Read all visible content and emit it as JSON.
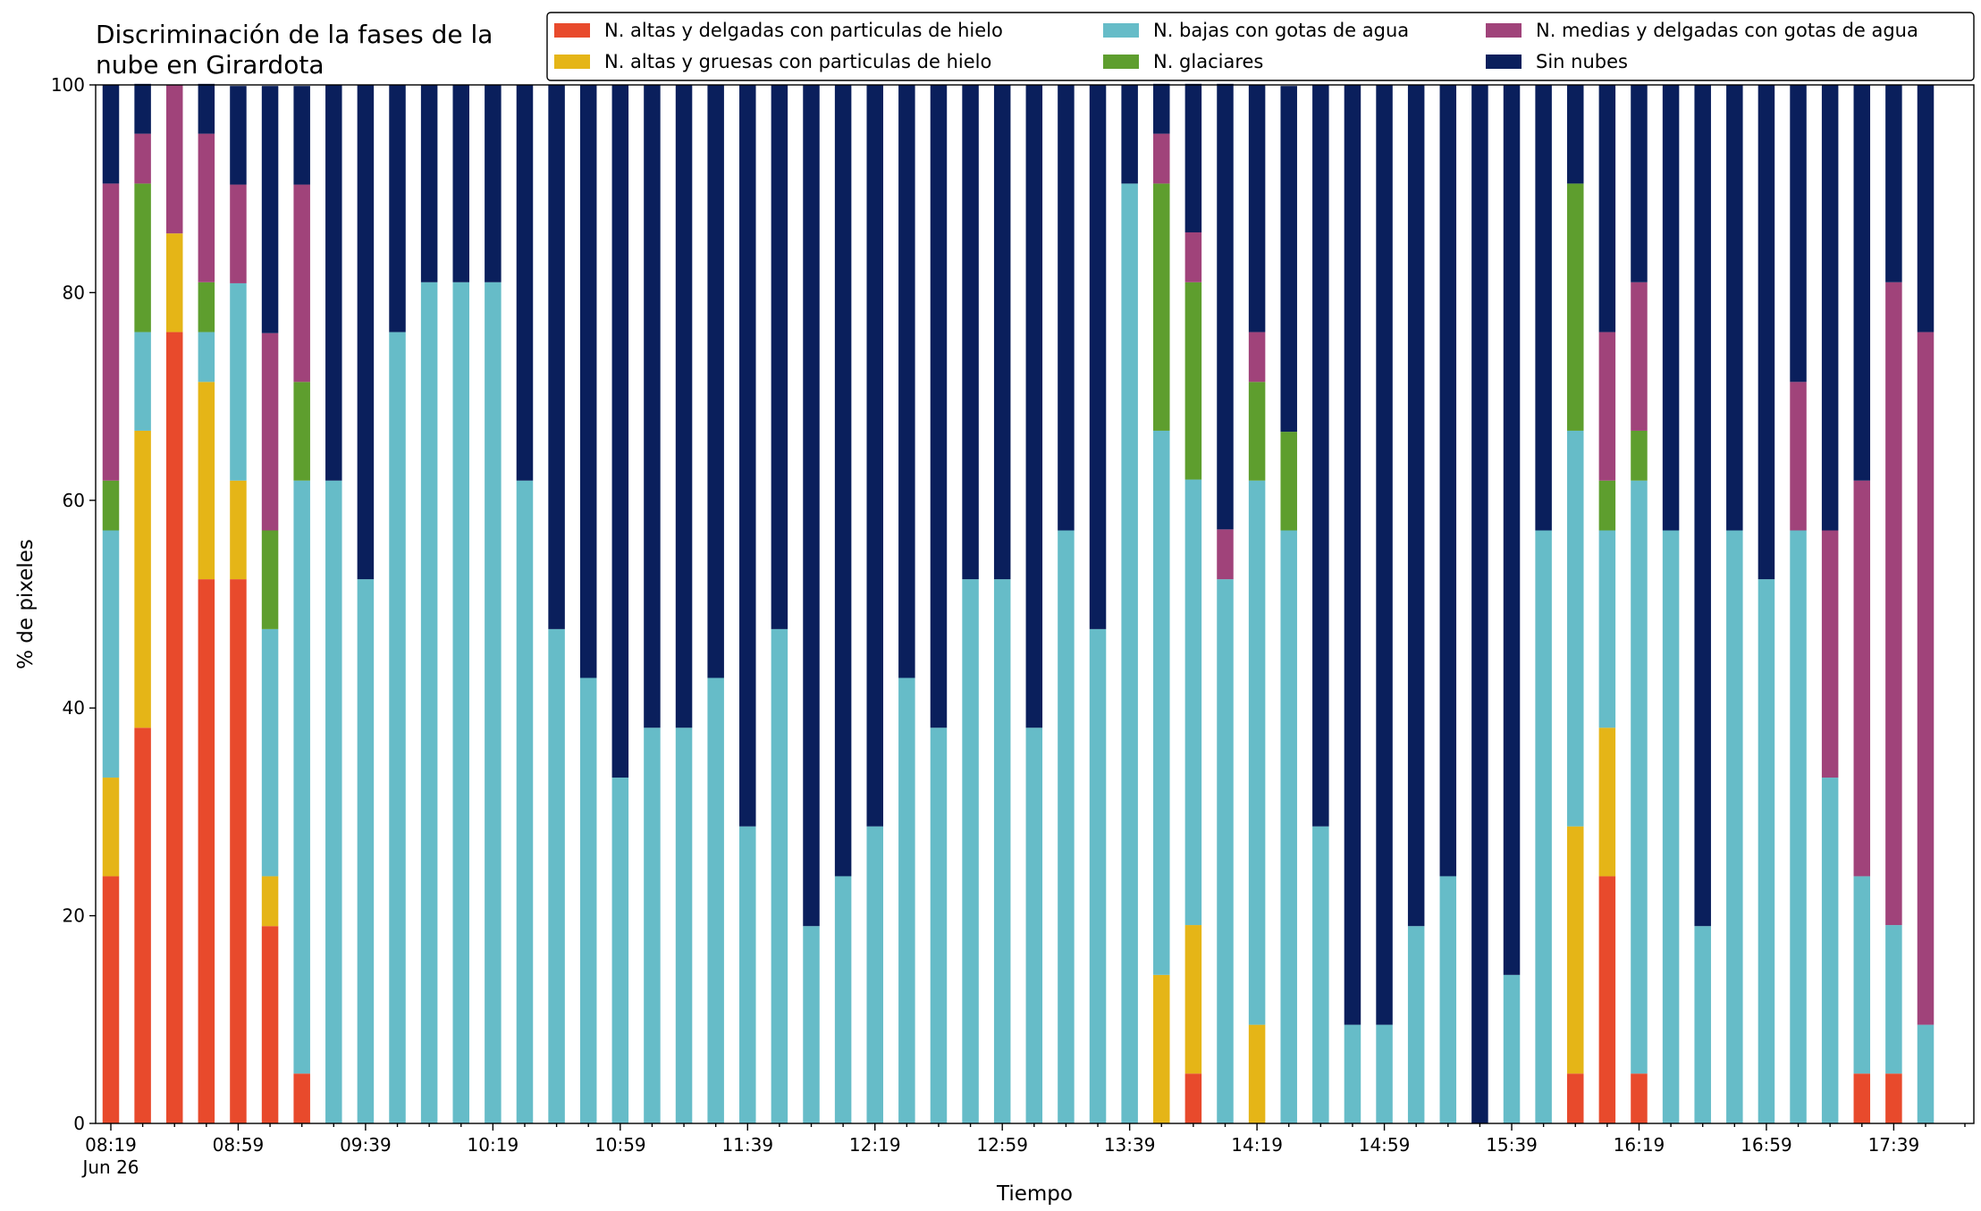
{
  "chart_data": {
    "type": "stacked_bar",
    "title": "Discriminación de la fases de la nube en Girardota",
    "x_label": "Tiempo",
    "y_label": "% de pixeles",
    "x_date_label": "Jun 26",
    "ylim": [
      0,
      100
    ],
    "yticks": [
      0,
      20,
      40,
      60,
      80,
      100
    ],
    "legend": "top-right",
    "categories": [
      "08:19",
      null,
      null,
      null,
      "08:59",
      null,
      null,
      null,
      "09:39",
      null,
      null,
      null,
      "10:19",
      null,
      null,
      null,
      "10:59",
      null,
      null,
      null,
      "11:39",
      null,
      null,
      null,
      "12:19",
      null,
      null,
      null,
      "12:59",
      null,
      null,
      null,
      "13:39",
      null,
      null,
      null,
      "14:19",
      null,
      null,
      null,
      "14:59",
      null,
      null,
      null,
      "15:39",
      null,
      null,
      null,
      "16:19",
      null,
      null,
      null,
      "16:59",
      null,
      null,
      null,
      "17:39",
      null
    ],
    "series": [
      {
        "name": "N. altas y delgadas con particulas de hielo",
        "color": "#e84a2c",
        "values": [
          23.8,
          38.1,
          76.2,
          52.4,
          52.4,
          19.0,
          4.8,
          0,
          0,
          0,
          0,
          0,
          0,
          0,
          0,
          0,
          0,
          0,
          0,
          0,
          0,
          0,
          0,
          0,
          0,
          0,
          0,
          0,
          0,
          0,
          0,
          0,
          0,
          0,
          4.8,
          0,
          0,
          0,
          0,
          0,
          0,
          0,
          0,
          0,
          0,
          0,
          4.8,
          23.8,
          4.8,
          0,
          0,
          0,
          0,
          0,
          0,
          4.8,
          4.8,
          0
        ]
      },
      {
        "name": "N. altas y gruesas con particulas de hielo",
        "color": "#e5b517",
        "values": [
          9.5,
          28.6,
          9.5,
          19.0,
          9.5,
          4.8,
          0,
          0,
          0,
          0,
          0,
          0,
          0,
          0,
          0,
          0,
          0,
          0,
          0,
          0,
          0,
          0,
          0,
          0,
          0,
          0,
          0,
          0,
          0,
          0,
          0,
          0,
          0,
          14.3,
          14.3,
          0,
          9.5,
          0,
          0,
          0,
          0,
          0,
          0,
          0,
          0,
          0,
          23.8,
          14.3,
          0,
          0,
          0,
          0,
          0,
          0,
          0,
          0,
          0,
          0
        ]
      },
      {
        "name": "N. bajas con gotas de agua",
        "color": "#66bcc8",
        "values": [
          23.8,
          9.5,
          0,
          4.8,
          19.0,
          23.8,
          57.1,
          61.9,
          52.4,
          76.2,
          81.0,
          81.0,
          81.0,
          61.9,
          47.6,
          42.9,
          33.3,
          38.1,
          38.1,
          42.9,
          28.6,
          47.6,
          19.0,
          23.8,
          28.6,
          42.9,
          38.1,
          52.4,
          52.4,
          38.1,
          57.1,
          47.6,
          90.5,
          52.4,
          42.9,
          52.4,
          52.4,
          57.1,
          28.6,
          9.5,
          9.5,
          19.0,
          23.8,
          0,
          14.3,
          57.1,
          38.1,
          19.0,
          57.1,
          57.1,
          19.0,
          57.1,
          52.4,
          57.1,
          33.3,
          19.0,
          14.3,
          9.5
        ]
      },
      {
        "name": "N. glaciares",
        "color": "#5e9e2e",
        "values": [
          4.8,
          14.3,
          0,
          4.8,
          0,
          9.5,
          9.5,
          0,
          0,
          0,
          0,
          0,
          0,
          0,
          0,
          0,
          0,
          0,
          0,
          0,
          0,
          0,
          0,
          0,
          0,
          0,
          0,
          0,
          0,
          0,
          0,
          0,
          0,
          23.8,
          19.0,
          0,
          9.5,
          9.5,
          0,
          0,
          0,
          0,
          0,
          0,
          0,
          0,
          23.8,
          4.8,
          4.8,
          0,
          0,
          0,
          0,
          0,
          0,
          0,
          0,
          0
        ]
      },
      {
        "name": "N. medias y delgadas con gotas de agua",
        "color": "#a0437a",
        "values": [
          28.6,
          4.8,
          14.3,
          14.3,
          9.5,
          19.0,
          19.0,
          0,
          0,
          0,
          0,
          0,
          0,
          0,
          0,
          0,
          0,
          0,
          0,
          0,
          0,
          0,
          0,
          0,
          0,
          0,
          0,
          0,
          0,
          0,
          0,
          0,
          0,
          4.8,
          4.8,
          4.8,
          4.8,
          0,
          0,
          0,
          0,
          0,
          0,
          0,
          0,
          0,
          0,
          14.3,
          14.3,
          0,
          0,
          0,
          0,
          14.3,
          23.8,
          38.1,
          61.9,
          66.7
        ]
      },
      {
        "name": "Sin nubes",
        "color": "#0a1f5c",
        "values": [
          9.5,
          4.8,
          0,
          4.8,
          9.5,
          23.8,
          9.5,
          38.1,
          47.6,
          23.8,
          19.0,
          19.0,
          19.0,
          38.1,
          52.4,
          57.1,
          66.7,
          61.9,
          61.9,
          57.1,
          71.4,
          52.4,
          81.0,
          76.2,
          71.4,
          57.1,
          61.9,
          47.6,
          47.6,
          61.9,
          42.9,
          52.4,
          9.5,
          4.8,
          14.3,
          42.9,
          23.8,
          33.3,
          71.4,
          90.5,
          90.5,
          81.0,
          76.2,
          100,
          85.7,
          42.9,
          9.5,
          23.8,
          19.0,
          42.9,
          81.0,
          42.9,
          47.6,
          28.6,
          42.9,
          38.1,
          19.0,
          23.8
        ]
      }
    ]
  }
}
